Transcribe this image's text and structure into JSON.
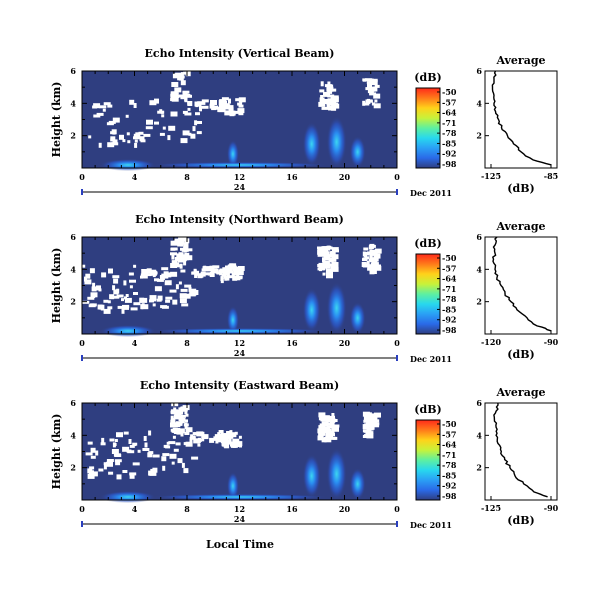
{
  "figure": {
    "date_label": "Dec 2011",
    "xlabel": "Local Time",
    "colorbar_title": "(dB)",
    "colorbar_ticks": [
      "-50",
      "-57",
      "-64",
      "-71",
      "-78",
      "-85",
      "-92",
      "-98"
    ],
    "colors": {
      "background_echo": "#2f3e80",
      "missing": "#ffffff",
      "colorbar_stops": [
        "#ff2a1a",
        "#ff7a1a",
        "#ffd21a",
        "#c8f23a",
        "#5ef0a0",
        "#28d8ee",
        "#2aa0f5",
        "#2a6ae8",
        "#2f3e80"
      ]
    }
  },
  "chart_data": [
    {
      "type": "heatmap",
      "title": "Echo Intensity (Vertical Beam)",
      "ylabel": "Height (km)",
      "xticks": [
        "0",
        "4",
        "8",
        "12",
        "16",
        "20",
        "0"
      ],
      "yticks": [
        "6",
        "4",
        "2"
      ],
      "xlim": [
        0,
        24
      ],
      "ylim": [
        0,
        6
      ],
      "day_label": "24",
      "colorbar_range": [
        -98,
        -50
      ],
      "profile": {
        "title": "Average",
        "xlabel": "(dB)",
        "xticks": [
          "-125",
          "-85"
        ],
        "yticks": [
          "6",
          "4",
          "2"
        ],
        "heights": [
          0.2,
          0.5,
          1.0,
          1.5,
          2.0,
          2.5,
          3.0,
          3.5,
          4.0,
          4.5,
          5.0,
          5.5,
          6.0
        ],
        "values": [
          -85,
          -97,
          -105,
          -110,
          -114,
          -118,
          -120,
          -122,
          -123,
          -123,
          -124,
          -123,
          -122
        ]
      }
    },
    {
      "type": "heatmap",
      "title": "Echo Intensity (Northward Beam)",
      "ylabel": "Height (km)",
      "xticks": [
        "0",
        "4",
        "8",
        "12",
        "16",
        "20",
        "0"
      ],
      "yticks": [
        "6",
        "4",
        "2"
      ],
      "xlim": [
        0,
        24
      ],
      "ylim": [
        0,
        6
      ],
      "day_label": "24",
      "colorbar_range": [
        -98,
        -50
      ],
      "profile": {
        "title": "Average",
        "xlabel": "(dB)",
        "xticks": [
          "-120",
          "-90"
        ],
        "yticks": [
          "6",
          "4",
          "2"
        ],
        "heights": [
          0.2,
          0.5,
          1.0,
          1.5,
          2.0,
          2.5,
          3.0,
          3.5,
          4.0,
          4.5,
          5.0,
          5.5,
          6.0
        ],
        "values": [
          -90,
          -97,
          -102,
          -107,
          -110,
          -113,
          -115,
          -117,
          -118,
          -119,
          -118,
          -118,
          -117
        ]
      }
    },
    {
      "type": "heatmap",
      "title": "Echo Intensity (Eastward Beam)",
      "ylabel": "Height (km)",
      "xticks": [
        "0",
        "4",
        "8",
        "12",
        "16",
        "20",
        "0"
      ],
      "yticks": [
        "6",
        "4",
        "2"
      ],
      "xlim": [
        0,
        24
      ],
      "ylim": [
        0,
        6
      ],
      "day_label": "24",
      "colorbar_range": [
        -98,
        -50
      ],
      "profile": {
        "title": "Average",
        "xlabel": "(dB)",
        "xticks": [
          "-125",
          "-90"
        ],
        "yticks": [
          "6",
          "4",
          "2"
        ],
        "heights": [
          0.2,
          0.5,
          1.0,
          1.5,
          2.0,
          2.5,
          3.0,
          3.5,
          4.0,
          4.5,
          5.0,
          5.5,
          6.0
        ],
        "values": [
          -92,
          -100,
          -106,
          -111,
          -114,
          -117,
          -119,
          -121,
          -122,
          -122,
          -123,
          -122,
          -121
        ]
      }
    }
  ]
}
